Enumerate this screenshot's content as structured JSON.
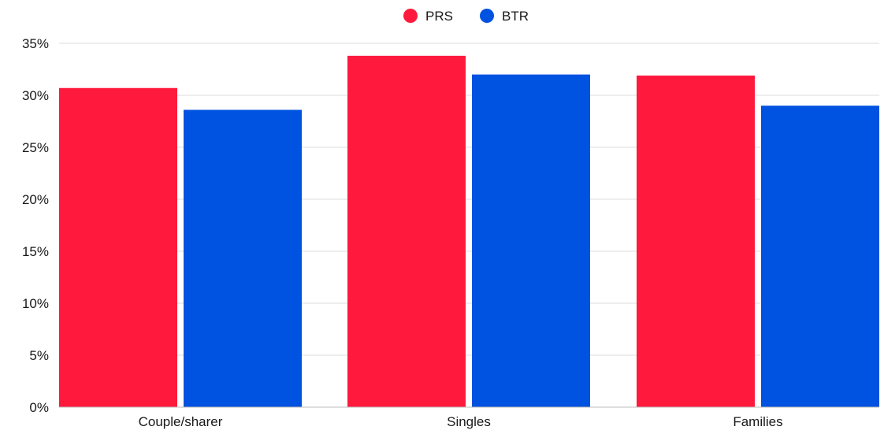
{
  "chart_data": {
    "type": "bar",
    "title": "",
    "xlabel": "",
    "ylabel": "",
    "categories": [
      "Couple/sharer",
      "Singles",
      "Families"
    ],
    "series": [
      {
        "name": "PRS",
        "color": "#ff1a3d",
        "values": [
          30.7,
          33.8,
          31.9
        ]
      },
      {
        "name": "BTR",
        "color": "#0052e0",
        "values": [
          28.6,
          32.0,
          29.0
        ]
      }
    ],
    "ylim": [
      0,
      35
    ],
    "yticks": [
      0,
      5,
      10,
      15,
      20,
      25,
      30,
      35
    ],
    "ytick_labels": [
      "0%",
      "5%",
      "10%",
      "15%",
      "20%",
      "25%",
      "30%",
      "35%"
    ],
    "grid": true,
    "legend_position": "top-center"
  }
}
